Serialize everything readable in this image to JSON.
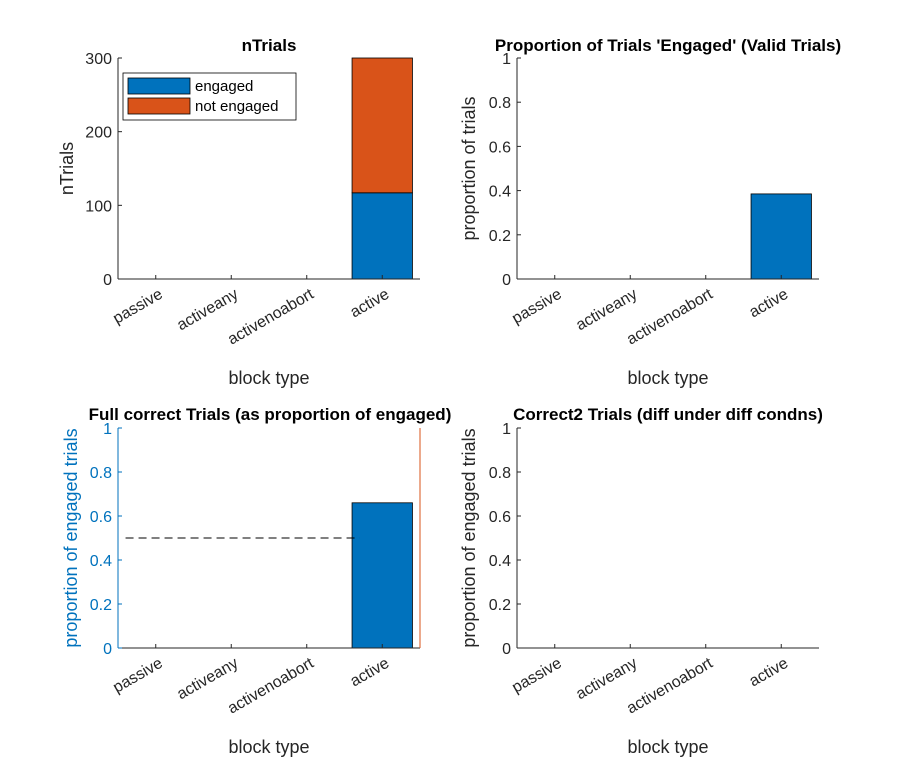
{
  "colors": {
    "engaged": "#0072bd",
    "not_engaged": "#d95319",
    "axis": "#262626",
    "right_axis": "#d95319",
    "left_axis_blue": "#0072bd",
    "chance_line": "#000000"
  },
  "chart_data": [
    {
      "type": "bar",
      "stacked": true,
      "title": "nTrials",
      "xlabel": "block type",
      "ylabel": "nTrials",
      "categories": [
        "passive",
        "activeany",
        "activenoabort",
        "active"
      ],
      "series": [
        {
          "name": "engaged",
          "values": [
            0,
            0,
            0,
            117
          ]
        },
        {
          "name": "not engaged",
          "values": [
            0,
            0,
            0,
            183
          ]
        }
      ],
      "ylim": [
        0,
        300
      ],
      "yticks": [
        "0",
        "100",
        "200",
        "300"
      ],
      "legend": "top-left"
    },
    {
      "type": "bar",
      "title": "Proportion of Trials 'Engaged' (Valid Trials)",
      "xlabel": "block type",
      "ylabel": "proportion of trials",
      "categories": [
        "passive",
        "activeany",
        "activenoabort",
        "active"
      ],
      "values": [
        0,
        0,
        0,
        0.385
      ],
      "ylim": [
        0,
        1
      ],
      "yticks": [
        "0",
        "0.2",
        "0.4",
        "0.6",
        "0.8",
        "1"
      ]
    },
    {
      "type": "bar",
      "title": "Full correct Trials (as proportion of engaged)",
      "xlabel": "block type",
      "ylabel": "proportion of engaged trials",
      "categories": [
        "passive",
        "activeany",
        "activenoabort",
        "active"
      ],
      "values": [
        0,
        0,
        0,
        0.66
      ],
      "ylim": [
        0,
        1
      ],
      "yticks": [
        "0",
        "0.2",
        "0.4",
        "0.6",
        "0.8",
        "1"
      ],
      "reference_line": {
        "y": 0.5,
        "x_from": 0.6,
        "x_to": 3.7,
        "style": "dashed"
      },
      "right_axis": true
    },
    {
      "type": "bar",
      "title": "Correct2 Trials (diff under diff condns)",
      "xlabel": "block type",
      "ylabel": "proportion of engaged trials",
      "categories": [
        "passive",
        "activeany",
        "activenoabort",
        "active"
      ],
      "values": [
        0,
        0,
        0,
        0
      ],
      "ylim": [
        0,
        1
      ],
      "yticks": [
        "0",
        "0.2",
        "0.4",
        "0.6",
        "0.8",
        "1"
      ]
    }
  ]
}
